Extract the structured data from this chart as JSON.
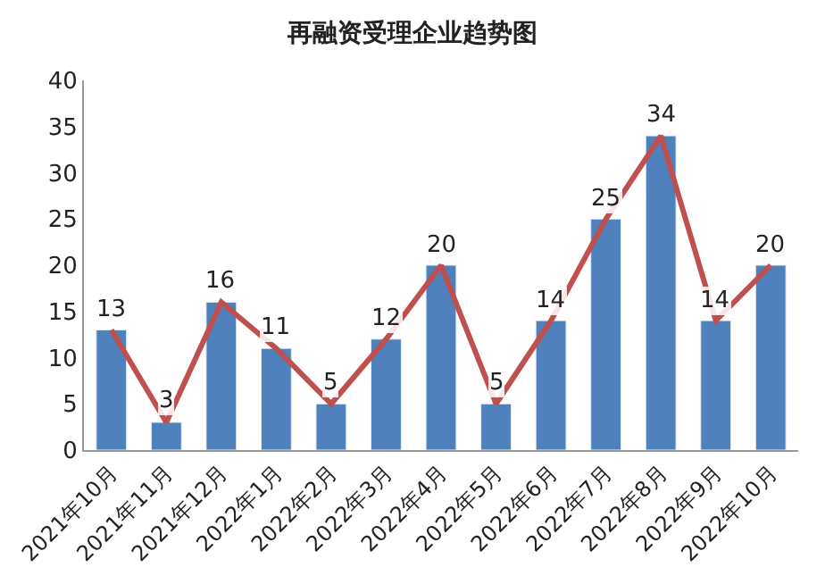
{
  "chart_data": {
    "type": "bar",
    "title": "再融资受理企业趋势图",
    "categories": [
      "2021年10月",
      "2021年11月",
      "2021年12月",
      "2022年1月",
      "2022年2月",
      "2022年3月",
      "2022年4月",
      "2022年5月",
      "2022年6月",
      "2022年7月",
      "2022年8月",
      "2022年9月",
      "2022年10月"
    ],
    "series": [
      {
        "color": "#4f81bd",
        "values": [
          13,
          3,
          16,
          11,
          5,
          12,
          20,
          5,
          14,
          25,
          34,
          14,
          20
        ],
        "value_labels": [
          "13",
          "3",
          "16",
          "11",
          "5",
          "12",
          "20",
          "5",
          "14",
          "25",
          "34",
          "14",
          "20"
        ]
      },
      {
        "type": "line",
        "color": "#c0504d",
        "values": [
          13,
          3,
          16,
          11,
          5,
          12,
          20,
          5,
          14,
          25,
          34,
          14,
          20
        ]
      }
    ],
    "ylim": [
      0,
      40
    ],
    "yticks": [
      0,
      5,
      10,
      15,
      20,
      25,
      30,
      35,
      40
    ],
    "marker": "none",
    "line_style": "solid"
  }
}
